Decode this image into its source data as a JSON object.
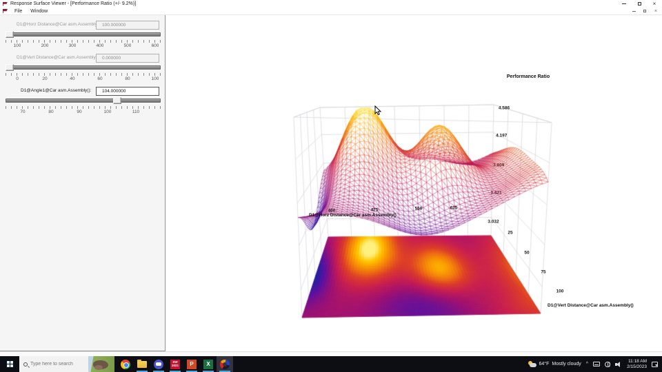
{
  "window": {
    "title": "Response Surface Viewer - [Performance Ratio (+/- 9.2%)]",
    "menu": [
      "File",
      "Window"
    ]
  },
  "panel": {
    "controls": [
      {
        "label": "D1@Horz Distance@Car asm.Assembly():",
        "value": "100.000000",
        "enabled": false,
        "ticks": [
          "100",
          "200",
          "300",
          "400",
          "500",
          "600"
        ]
      },
      {
        "label": "D1@Vert Distance@Car asm.Assembly():",
        "value": "0.000000",
        "enabled": false,
        "ticks": [
          "0",
          "20",
          "40",
          "60",
          "80",
          "100"
        ]
      },
      {
        "label": "D1@Angle1@Car asm.Assembly():",
        "value": "104.000000",
        "enabled": true,
        "ticks": [
          "70",
          "80",
          "90",
          "100",
          "110"
        ]
      }
    ]
  },
  "chart_data": {
    "type": "surface3d",
    "title": "Performance Ratio",
    "x_axis": {
      "label": "D1@Horz Distance@Car asm.Assembly()",
      "ticks": [
        "400",
        "475",
        "550",
        "625"
      ]
    },
    "y_axis": {
      "label": "D1@Vert Distance@Car asm.Assembly()",
      "ticks": [
        "25",
        "50",
        "75",
        "100"
      ]
    },
    "z_axis": {
      "ticks": [
        "3.032",
        "3.421",
        "3.809",
        "4.197",
        "4.586"
      ]
    },
    "legend_position": "none",
    "grid": {
      "nu": 46,
      "nv": 30
    },
    "palette": [
      [
        0,
        "#20209f"
      ],
      [
        0.13,
        "#5a10a0"
      ],
      [
        0.3,
        "#a01070"
      ],
      [
        0.45,
        "#c81e4e"
      ],
      [
        0.6,
        "#dc3c28"
      ],
      [
        0.72,
        "#ee6e10"
      ],
      [
        0.84,
        "#fa9e00"
      ],
      [
        0.93,
        "#ffc800"
      ],
      [
        1,
        "#fff080"
      ]
    ],
    "surface_model": {
      "base": 0.52,
      "clamp": [
        0.02,
        1.0
      ],
      "bumps": [
        {
          "a": 0.5,
          "u": 0.26,
          "su": 0.17,
          "v": 0.85,
          "sv": 0.4
        },
        {
          "a": 0.4,
          "u": 0.63,
          "su": 0.15,
          "v": 0.6,
          "sv": 0.3
        },
        {
          "a": 0.38,
          "u": 1.15,
          "su": 0.23,
          "v": 0.55,
          "sv": 0.5
        },
        {
          "a": -0.13,
          "u": 0.52,
          "su": 0.22,
          "v": 0.12,
          "sv": 0.35
        },
        {
          "a": -0.26,
          "u": -0.02,
          "su": 0.11,
          "v": 0.55,
          "sv": 0.35
        },
        {
          "a": 0.1,
          "u": 1.0,
          "su": 0.25,
          "v": 0.05,
          "sv": 0.25
        }
      ]
    },
    "box_color": "#d2d2da"
  },
  "taskbar": {
    "search_placeholder": "Type here to search",
    "apps": {
      "sw_top": "SW",
      "sw_bottom": "2021",
      "ppt": "P",
      "excel": "X"
    },
    "tray": {
      "weather_temp": "64°F",
      "weather_desc": "Mostly cloudy",
      "chevron": "^",
      "time": "11:18 AM",
      "date": "2/15/2023"
    }
  }
}
